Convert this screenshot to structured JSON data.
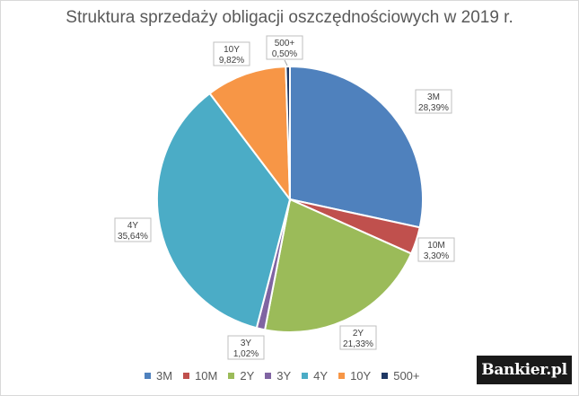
{
  "chart_data": {
    "type": "pie",
    "title": "Struktura sprzedaży obligacji oszczędnościowych w 2019 r.",
    "slices": [
      {
        "name": "3M",
        "value": 28.39,
        "value_label": "28,39%",
        "color": "#4f81bd"
      },
      {
        "name": "10M",
        "value": 3.3,
        "value_label": "3,30%",
        "color": "#c0504d"
      },
      {
        "name": "2Y",
        "value": 21.33,
        "value_label": "21,33%",
        "color": "#9bbb59"
      },
      {
        "name": "3Y",
        "value": 1.02,
        "value_label": "1,02%",
        "color": "#8064a2"
      },
      {
        "name": "4Y",
        "value": 35.64,
        "value_label": "35,64%",
        "color": "#4bacc6"
      },
      {
        "name": "10Y",
        "value": 9.82,
        "value_label": "9,82%",
        "color": "#f79646"
      },
      {
        "name": "500+",
        "value": 0.5,
        "value_label": "0,50%",
        "color": "#1f3864"
      }
    ],
    "legend_position": "bottom"
  },
  "branding": {
    "logo_text": "Bankier.pl"
  }
}
